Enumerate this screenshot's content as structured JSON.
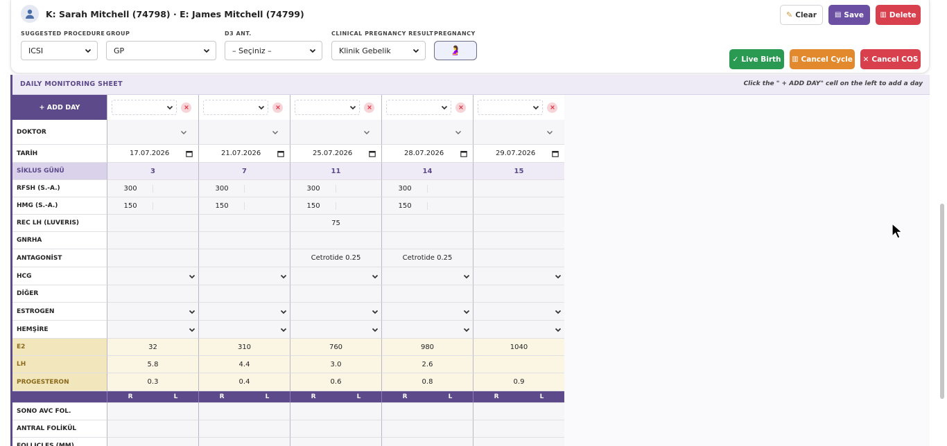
{
  "header": {
    "patient": "K: Sarah Mitchell (74798) · E: James Mitchell (74799)",
    "fields": [
      {
        "label": "SUGGESTED PROCEDURE",
        "value": "ICSI"
      },
      {
        "label": "GROUP",
        "value": "GP"
      },
      {
        "label": "D3 ANT.",
        "value": "– Seçiniz –"
      },
      {
        "label": "CLINICAL PREGNANCY RESULT",
        "value": "Klinik Gebelik"
      },
      {
        "label": "PREGNANCY",
        "value": "🤰"
      }
    ],
    "buttons": {
      "clear": "Clear",
      "save": "Save",
      "delete": "Delete",
      "live_birth": "Live Birth",
      "cancel_cycle": "Cancel Cycle",
      "cancel_cos": "Cancel COS"
    }
  },
  "sheet": {
    "title": "DAILY MONITORING SHEET",
    "hint": "Click the \" + ADD DAY\" cell on the left to add a day",
    "add_day": "+ ADD DAY",
    "labels": {
      "doktor": "DOKTOR",
      "tarih": "TARİH",
      "siklus": "SİKLUS GÜNÜ",
      "rfsh": "RFSH (S.-A.)",
      "hmg": "HMG (S.-A.)",
      "reclh": "REC LH (LUVERIS)",
      "gnrha": "GNRHA",
      "antagonist": "ANTAGONİST",
      "hcg": "HCG",
      "diger": "DİĞER",
      "estrogen": "ESTROGEN",
      "hemsire": "HEMŞİRE",
      "e2": "E2",
      "lh": "LH",
      "progesteron": "PROGESTERON",
      "sono": "SONO AVC FOL.",
      "antral": "ANTRAL FOLİKÜL",
      "follicles": "FOLLICLES (MM)"
    },
    "rl": [
      "R",
      "L"
    ],
    "days": [
      {
        "date": "17.07.2026",
        "cycle_day": "3",
        "rfsh": "300",
        "hmg": "150",
        "reclh": "",
        "antagonist": "",
        "e2": "32",
        "lh": "5.8",
        "progesteron": "0.3"
      },
      {
        "date": "21.07.2026",
        "cycle_day": "7",
        "rfsh": "300",
        "hmg": "150",
        "reclh": "",
        "antagonist": "",
        "e2": "310",
        "lh": "4.4",
        "progesteron": "0.4"
      },
      {
        "date": "25.07.2026",
        "cycle_day": "11",
        "rfsh": "300",
        "hmg": "150",
        "reclh": "75",
        "antagonist": "Cetrotide 0.25",
        "e2": "760",
        "lh": "3.0",
        "progesteron": "0.6"
      },
      {
        "date": "28.07.2026",
        "cycle_day": "14",
        "rfsh": "300",
        "hmg": "150",
        "reclh": "",
        "antagonist": "Cetrotide 0.25",
        "e2": "980",
        "lh": "2.6",
        "progesteron": "0.8"
      },
      {
        "date": "29.07.2026",
        "cycle_day": "15",
        "rfsh": "",
        "hmg": "",
        "reclh": "",
        "antagonist": "",
        "e2": "1040",
        "lh": "",
        "progesteron": "0.9"
      }
    ]
  }
}
